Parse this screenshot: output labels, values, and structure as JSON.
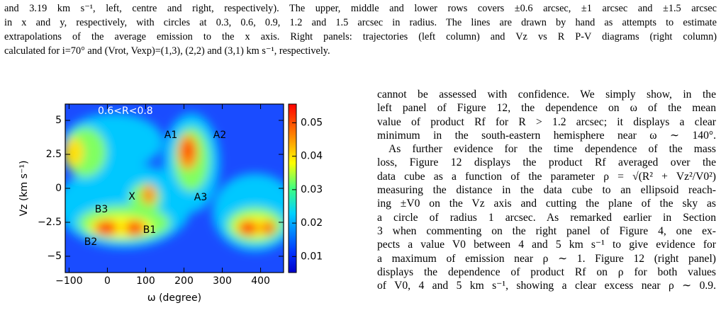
{
  "caption": {
    "lines": [
      "and 3.19 km s⁻¹, left, centre and right, respectively). The upper, middle and lower rows covers ±0.6 arcsec, ±1 arcsec and ±1.5 arcsec",
      "in x and y, respectively, with circles at 0.3, 0.6, 0.9, 1.2 and 1.5 arcsec in radius. The lines are drawn by hand as attempts to estimate",
      "extrapolations of the average emission to the x axis. Right panels: trajectories (left column) and Vz vs R P-V diagrams (right column)",
      "calculated for i=70° and (Vrot, Vexp)=(1,3), (2,2) and (3,1) km s⁻¹, respectively."
    ]
  },
  "figure": {
    "panel_label": "0.6<R<0.8",
    "x_label": "ω (degree)",
    "y_label": "Vz (km s⁻¹)",
    "xlim": [
      -110,
      460
    ],
    "xticks": [
      {
        "value": -100,
        "label": "−100"
      },
      0,
      100,
      200,
      300,
      400
    ],
    "ylim": [
      -6.2,
      6.2
    ],
    "yticks": [
      5,
      2.5,
      0,
      {
        "value": -2.5,
        "label": "−2.5"
      },
      {
        "value": -5,
        "label": "−5"
      }
    ],
    "colorbar_lim": [
      0.0052,
      0.0556
    ],
    "colorbar_ticks": [
      0.05,
      0.04,
      0.03,
      0.02,
      0.01
    ],
    "annotations": [
      "A1",
      "A2",
      "A3",
      "X",
      "B1",
      "B2",
      "B3"
    ]
  },
  "body": {
    "lines": [
      "cannot be assessed with confidence. We simply show, in the",
      "left panel of Figure 12, the dependence on ω of the mean",
      "value of product Rf for R > 1.2 arcsec; it displays a clear",
      "minimum in the south-eastern hemisphere near ω ∼ 140°.",
      "As further evidence for the time dependence of the mass",
      "loss, Figure 12 displays the product Rf averaged over the",
      "data cube as a function of the parameter ρ = √(R² + Vz²/V0²)",
      "measuring the distance in the data cube to an ellipsoid reach-",
      "ing ±V0 on the Vz axis and cutting the plane of the sky as",
      "a circle of radius 1 arcsec. As remarked earlier in Section",
      "3 when commenting on the right panel of Figure 4, one ex-",
      "pects a value V0 between 4 and 5 km s⁻¹ to give evidence for",
      "a maximum of emission near ρ ∼ 1. Figure 12 (right panel)",
      "displays the dependence of product Rf on ρ for both values",
      "of V0, 4 and 5 km s⁻¹, showing a clear excess near ρ ∼ 0.9."
    ]
  }
}
